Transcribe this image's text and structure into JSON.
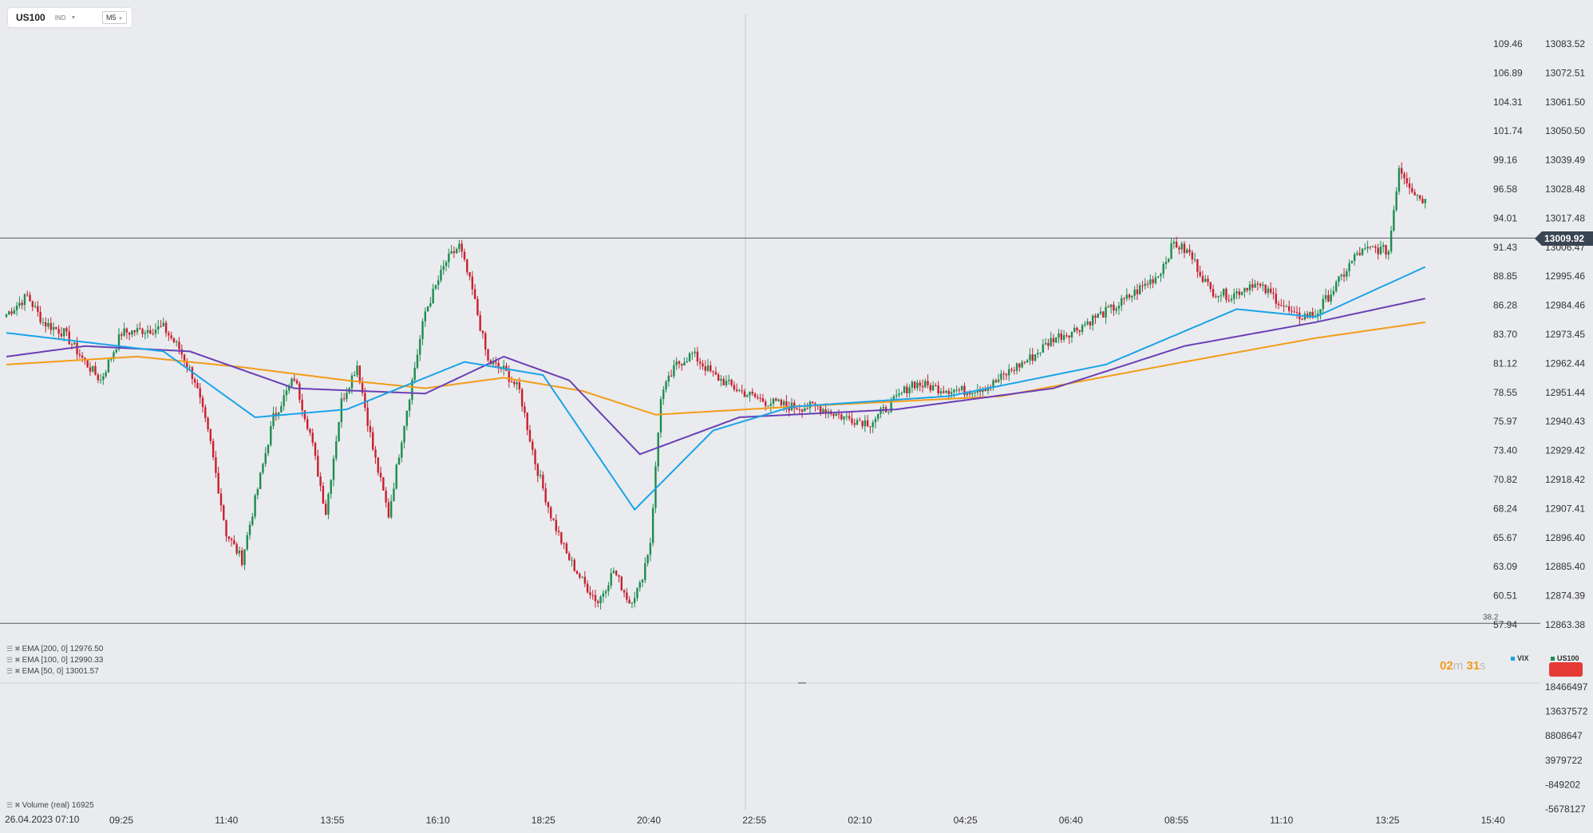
{
  "symbol": {
    "name": "US100",
    "type": "IND",
    "timeframe": "M5"
  },
  "price_tag": "13009.92",
  "fib_label": "38.2",
  "indicators": {
    "ema200": "EMA [200,  0]  12976.50",
    "ema100": "EMA [100,  0]  12990.33",
    "ema50": "EMA [50,  0]  13001.57",
    "volume": "Volume  (real)  16925"
  },
  "timer": {
    "min": "02",
    "min_unit": "m",
    "sec": "31",
    "sec_unit": "s"
  },
  "legend": {
    "vix": "VIX",
    "us100": "US100"
  },
  "date_label": "26.04.2023   07:10",
  "colors": {
    "bull": "#1e8c4e",
    "bear": "#c8202f",
    "ema200": "#f39c1a",
    "ema100": "#6a3fb5",
    "vix": "#1aa3e8",
    "price_tag_bg": "#3a4553",
    "badge": "#e53935"
  },
  "chart_data": {
    "type": "candlestick",
    "x_ticks": [
      "09:25",
      "11:40",
      "13:55",
      "16:10",
      "18:25",
      "20:40",
      "22:55",
      "02:10",
      "04:25",
      "06:40",
      "08:55",
      "11:10",
      "13:25",
      "15:40"
    ],
    "vix_axis_ticks": [
      "109.46",
      "106.89",
      "104.31",
      "101.74",
      "99.16",
      "96.58",
      "94.01",
      "91.43",
      "88.85",
      "86.28",
      "83.70",
      "81.12",
      "78.55",
      "75.97",
      "73.40",
      "70.82",
      "68.24",
      "65.67",
      "63.09",
      "60.51",
      "57.94"
    ],
    "price_axis_ticks": [
      "13083.52",
      "13072.51",
      "13061.50",
      "13050.50",
      "13039.49",
      "13028.48",
      "13017.48",
      "13006.47",
      "12995.46",
      "12984.46",
      "12973.45",
      "12962.44",
      "12951.44",
      "12940.43",
      "12929.42",
      "12918.42",
      "12907.41",
      "12896.40",
      "12885.40",
      "12874.39",
      "12863.38"
    ],
    "volume_axis_ticks": [
      "18466497",
      "13637572",
      "8808647",
      "3979722",
      "-849202",
      "-5678127"
    ],
    "price_levels": [
      13009.92,
      12863.9
    ],
    "close_keypoints": [
      [
        0,
        12981
      ],
      [
        8,
        12988
      ],
      [
        14,
        12978
      ],
      [
        22,
        12974
      ],
      [
        30,
        12963
      ],
      [
        36,
        12956
      ],
      [
        44,
        12974
      ],
      [
        52,
        12975
      ],
      [
        60,
        12976
      ],
      [
        66,
        12968
      ],
      [
        72,
        12956
      ],
      [
        78,
        12932
      ],
      [
        84,
        12898
      ],
      [
        90,
        12888
      ],
      [
        96,
        12915
      ],
      [
        102,
        12942
      ],
      [
        110,
        12957
      ],
      [
        116,
        12936
      ],
      [
        122,
        12906
      ],
      [
        128,
        12948
      ],
      [
        134,
        12962
      ],
      [
        140,
        12930
      ],
      [
        146,
        12905
      ],
      [
        152,
        12940
      ],
      [
        160,
        12982
      ],
      [
        168,
        13001
      ],
      [
        173,
        13007
      ],
      [
        178,
        12990
      ],
      [
        184,
        12963
      ],
      [
        190,
        12960
      ],
      [
        196,
        12952
      ],
      [
        202,
        12925
      ],
      [
        208,
        12905
      ],
      [
        214,
        12890
      ],
      [
        220,
        12880
      ],
      [
        226,
        12872
      ],
      [
        232,
        12884
      ],
      [
        238,
        12872
      ],
      [
        242,
        12878
      ],
      [
        246,
        12895
      ],
      [
        250,
        12950
      ],
      [
        256,
        12962
      ],
      [
        262,
        12966
      ],
      [
        270,
        12958
      ],
      [
        280,
        12952
      ],
      [
        290,
        12948
      ],
      [
        300,
        12946
      ],
      [
        310,
        12946
      ],
      [
        320,
        12942
      ],
      [
        330,
        12940
      ],
      [
        338,
        12947
      ],
      [
        346,
        12955
      ],
      [
        356,
        12953
      ],
      [
        366,
        12952
      ],
      [
        376,
        12954
      ],
      [
        384,
        12960
      ],
      [
        392,
        12965
      ],
      [
        400,
        12972
      ],
      [
        408,
        12975
      ],
      [
        416,
        12980
      ],
      [
        424,
        12984
      ],
      [
        432,
        12990
      ],
      [
        440,
        12996
      ],
      [
        446,
        13008
      ],
      [
        452,
        13004
      ],
      [
        460,
        12990
      ],
      [
        468,
        12988
      ],
      [
        476,
        12993
      ],
      [
        484,
        12988
      ],
      [
        492,
        12980
      ],
      [
        500,
        12981
      ],
      [
        508,
        12992
      ],
      [
        516,
        13004
      ],
      [
        522,
        13006
      ],
      [
        528,
        13005
      ],
      [
        532,
        13037
      ],
      [
        538,
        13027
      ],
      [
        542,
        13024
      ]
    ],
    "ema50_keypoints": [
      [
        0,
        12974
      ],
      [
        60,
        12967
      ],
      [
        95,
        12942
      ],
      [
        130,
        12945
      ],
      [
        175,
        12963
      ],
      [
        205,
        12958
      ],
      [
        240,
        12907
      ],
      [
        270,
        12937
      ],
      [
        300,
        12946
      ],
      [
        360,
        12950
      ],
      [
        420,
        12962
      ],
      [
        470,
        12983
      ],
      [
        500,
        12980
      ],
      [
        542,
        12999
      ]
    ],
    "ema100_keypoints": [
      [
        0,
        12965
      ],
      [
        30,
        12969
      ],
      [
        70,
        12967
      ],
      [
        110,
        12953
      ],
      [
        160,
        12951
      ],
      [
        190,
        12965
      ],
      [
        215,
        12956
      ],
      [
        242,
        12928
      ],
      [
        280,
        12942
      ],
      [
        340,
        12945
      ],
      [
        400,
        12953
      ],
      [
        450,
        12969
      ],
      [
        500,
        12978
      ],
      [
        542,
        12987
      ]
    ],
    "ema200_keypoints": [
      [
        0,
        12962
      ],
      [
        50,
        12965
      ],
      [
        90,
        12961
      ],
      [
        130,
        12956
      ],
      [
        160,
        12953
      ],
      [
        190,
        12957
      ],
      [
        220,
        12952
      ],
      [
        248,
        12943
      ],
      [
        300,
        12946
      ],
      [
        380,
        12950
      ],
      [
        450,
        12963
      ],
      [
        500,
        12972
      ],
      [
        542,
        12978
      ]
    ],
    "series": [
      {
        "name": "US100",
        "kind": "ohlc_candles"
      },
      {
        "name": "EMA [50,  0]"
      },
      {
        "name": "EMA [100,  0]"
      },
      {
        "name": "EMA [200,  0]"
      },
      {
        "name": "Volume  (real)"
      }
    ]
  }
}
